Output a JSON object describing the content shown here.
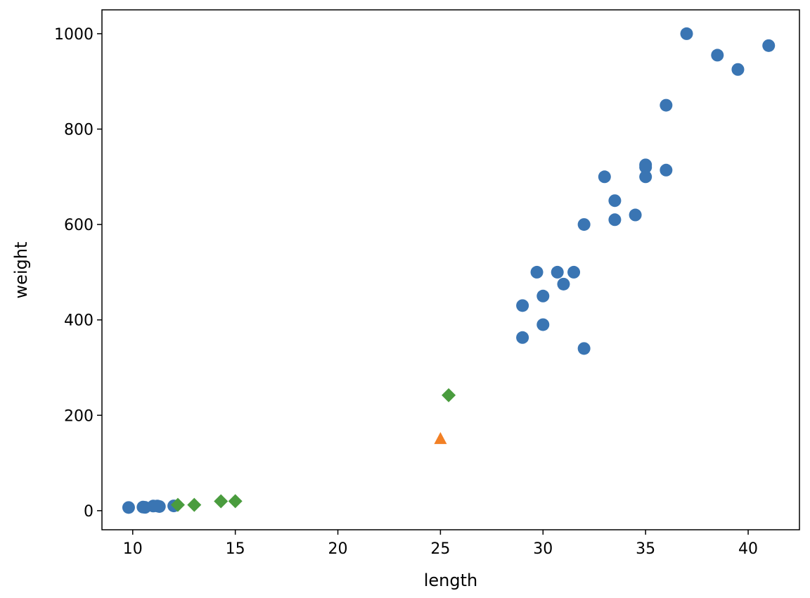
{
  "chart_data": {
    "type": "scatter",
    "title": "",
    "xlabel": "length",
    "ylabel": "weight",
    "xlim": [
      8.5,
      42.5
    ],
    "ylim": [
      -40,
      1050
    ],
    "x_ticks": [
      10,
      15,
      20,
      25,
      30,
      35,
      40
    ],
    "y_ticks": [
      0,
      200,
      400,
      600,
      800,
      1000
    ],
    "grid": false,
    "legend": null,
    "series": [
      {
        "marker": "circle",
        "color": "#3a75b3",
        "points": [
          [
            9.8,
            6.7
          ],
          [
            10.5,
            7.5
          ],
          [
            10.6,
            7.0
          ],
          [
            11.0,
            9.7
          ],
          [
            11.2,
            9.8
          ],
          [
            11.3,
            8.7
          ],
          [
            12.0,
            10.0
          ],
          [
            29.0,
            430
          ],
          [
            29.0,
            363
          ],
          [
            29.7,
            500
          ],
          [
            30.0,
            450
          ],
          [
            30.0,
            390
          ],
          [
            30.7,
            500
          ],
          [
            31.0,
            475
          ],
          [
            31.5,
            500
          ],
          [
            32.0,
            600
          ],
          [
            32.0,
            340
          ],
          [
            33.0,
            700
          ],
          [
            33.5,
            650
          ],
          [
            33.5,
            610
          ],
          [
            34.5,
            620
          ],
          [
            35.0,
            725
          ],
          [
            35.0,
            720
          ],
          [
            35.0,
            700
          ],
          [
            36.0,
            850
          ],
          [
            36.0,
            714
          ],
          [
            37.0,
            1000
          ],
          [
            38.5,
            955
          ],
          [
            39.5,
            925
          ],
          [
            41.0,
            975
          ]
        ]
      },
      {
        "marker": "triangle",
        "color": "#f28025",
        "points": [
          [
            25.0,
            150
          ]
        ]
      },
      {
        "marker": "diamond",
        "color": "#4a9c3e",
        "points": [
          [
            12.2,
            12.2
          ],
          [
            13.0,
            12.2
          ],
          [
            14.3,
            19.7
          ],
          [
            15.0,
            19.9
          ],
          [
            25.4,
            242
          ]
        ]
      }
    ]
  }
}
